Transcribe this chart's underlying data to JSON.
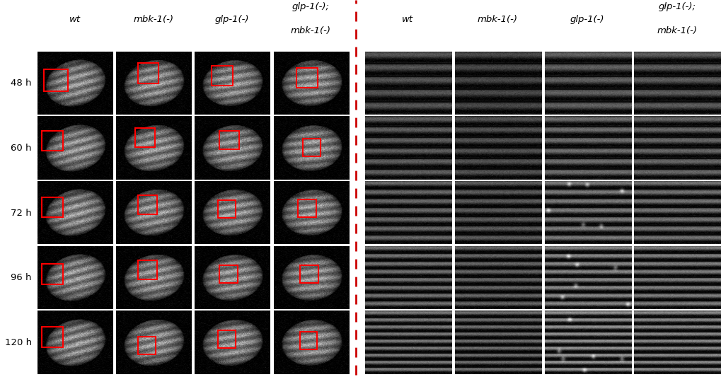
{
  "background_color": "#000000",
  "figure_background": "#ffffff",
  "rows": [
    "48 h",
    "60 h",
    "72 h",
    "96 h",
    "120 h"
  ],
  "left_cols": [
    "wt",
    "mbk-1(-)",
    "glp-1(-)",
    "glp-1(-);\nmbk-1(-)"
  ],
  "right_cols": [
    "wt",
    "mbk-1(-)",
    "glp-1(-)",
    "glp-1(-);\nmbk-1(-)"
  ],
  "dashed_line_color": "#cc0000",
  "label_color": "#000000",
  "fig_width": 10.2,
  "fig_height": 5.33,
  "header_fontsize": 9.5,
  "row_label_fontsize": 9.5
}
